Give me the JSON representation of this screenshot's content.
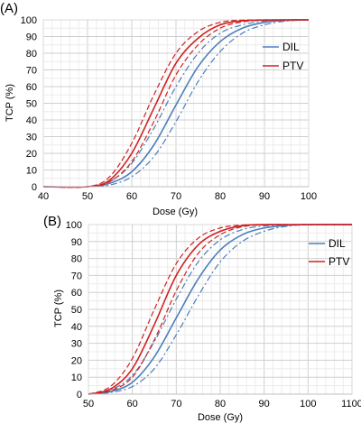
{
  "chart_data": [
    {
      "type": "line",
      "panel_label": "(A)",
      "xlabel": "Dose (Gy)",
      "ylabel": "TCP (%)",
      "xlim": [
        40,
        100
      ],
      "ylim": [
        0,
        100
      ],
      "x_ticks": [
        "40",
        "50",
        "60",
        "70",
        "80",
        "90",
        "100"
      ],
      "y_ticks": [
        "0",
        "10",
        "20",
        "30",
        "40",
        "50",
        "60",
        "70",
        "80",
        "90",
        "100"
      ],
      "grid": true,
      "legend_position": "right",
      "legend": [
        "DIL",
        "PTV"
      ],
      "colors": {
        "DIL": "#4a7ebb",
        "PTV": "#d02020"
      },
      "series": [
        {
          "name": "DIL",
          "style": "solid",
          "x": [
            40,
            50,
            55,
            60,
            65,
            70,
            75,
            80,
            85,
            90,
            95,
            100
          ],
          "y": [
            0,
            0,
            2,
            9,
            25,
            49,
            72,
            87,
            95,
            98.5,
            99.7,
            100
          ]
        },
        {
          "name": "DIL",
          "style": "dashdot",
          "x": [
            40,
            50,
            55,
            60,
            65,
            70,
            75,
            80,
            85,
            90,
            95,
            100
          ],
          "y": [
            0,
            0,
            3,
            14,
            35,
            60,
            80,
            92,
            97,
            99.3,
            99.9,
            100
          ]
        },
        {
          "name": "DIL",
          "style": "dashdot",
          "x": [
            40,
            50,
            55,
            60,
            65,
            70,
            75,
            80,
            85,
            90,
            95,
            100
          ],
          "y": [
            0,
            0,
            1,
            6,
            18,
            39,
            63,
            81,
            92,
            97,
            99.3,
            100
          ]
        },
        {
          "name": "PTV",
          "style": "solid",
          "x": [
            40,
            50,
            55,
            60,
            65,
            70,
            75,
            80,
            85,
            90,
            95,
            100
          ],
          "y": [
            0,
            0,
            4,
            20,
            47,
            74,
            89,
            97,
            99.4,
            99.9,
            100,
            100
          ]
        },
        {
          "name": "PTV",
          "style": "dashed",
          "x": [
            40,
            50,
            55,
            60,
            65,
            70,
            75,
            80,
            85,
            90,
            95,
            100
          ],
          "y": [
            0,
            0,
            6,
            26,
            55,
            80,
            93,
            98.5,
            99.8,
            100,
            100,
            100
          ]
        },
        {
          "name": "PTV",
          "style": "dashed",
          "x": [
            40,
            50,
            55,
            60,
            65,
            70,
            75,
            80,
            85,
            90,
            95,
            100
          ],
          "y": [
            0,
            0,
            3,
            15,
            39,
            67,
            85,
            95,
            98.8,
            99.8,
            100,
            100
          ]
        }
      ]
    },
    {
      "type": "line",
      "panel_label": "(B)",
      "xlabel": "Dose (Gy)",
      "ylabel": "TCP (%)",
      "xlim": [
        50,
        110
      ],
      "ylim": [
        0,
        100
      ],
      "x_ticks": [
        "50",
        "60",
        "70",
        "80",
        "90",
        "100",
        "110"
      ],
      "x_ticks_display": [
        "50",
        "60",
        "70",
        "80",
        "90",
        "100",
        "1100"
      ],
      "y_ticks": [
        "0",
        "10",
        "20",
        "30",
        "40",
        "50",
        "60",
        "70",
        "80",
        "90",
        "100"
      ],
      "grid": true,
      "legend_position": "right",
      "legend": [
        "DIL",
        "PTV"
      ],
      "colors": {
        "DIL": "#4a7ebb",
        "PTV": "#d02020"
      },
      "series": [
        {
          "name": "DIL",
          "style": "solid",
          "x": [
            50,
            55,
            60,
            65,
            70,
            75,
            80,
            85,
            90,
            95,
            100,
            110
          ],
          "y": [
            0,
            1.5,
            7,
            22,
            45,
            68,
            85,
            94,
            98,
            99.5,
            100,
            100
          ]
        },
        {
          "name": "DIL",
          "style": "dashdot",
          "x": [
            50,
            55,
            60,
            65,
            70,
            75,
            80,
            85,
            90,
            95,
            100,
            110
          ],
          "y": [
            0,
            2.5,
            11,
            31,
            56,
            78,
            91,
            97,
            99.2,
            99.8,
            100,
            100
          ]
        },
        {
          "name": "DIL",
          "style": "dashdot",
          "x": [
            50,
            55,
            60,
            65,
            70,
            75,
            80,
            85,
            90,
            95,
            100,
            110
          ],
          "y": [
            0,
            1,
            4.5,
            15,
            35,
            58,
            78,
            90,
            96,
            99,
            99.8,
            100
          ]
        },
        {
          "name": "PTV",
          "style": "solid",
          "x": [
            50,
            55,
            60,
            65,
            70,
            75,
            80,
            85,
            90,
            95,
            100,
            110
          ],
          "y": [
            0,
            3,
            15,
            41,
            70,
            88,
            96,
            99.3,
            100,
            100,
            100,
            100
          ]
        },
        {
          "name": "PTV",
          "style": "dashed",
          "x": [
            50,
            55,
            60,
            65,
            70,
            75,
            80,
            85,
            90,
            95,
            100,
            110
          ],
          "y": [
            0,
            4.5,
            21,
            50,
            77,
            92,
            98,
            99.7,
            100,
            100,
            100,
            100
          ]
        },
        {
          "name": "PTV",
          "style": "dashed",
          "x": [
            50,
            55,
            60,
            65,
            70,
            75,
            80,
            85,
            90,
            95,
            100,
            110
          ],
          "y": [
            0,
            2,
            10,
            32,
            61,
            83,
            94,
            98.7,
            99.8,
            100,
            100,
            100
          ]
        }
      ]
    }
  ]
}
